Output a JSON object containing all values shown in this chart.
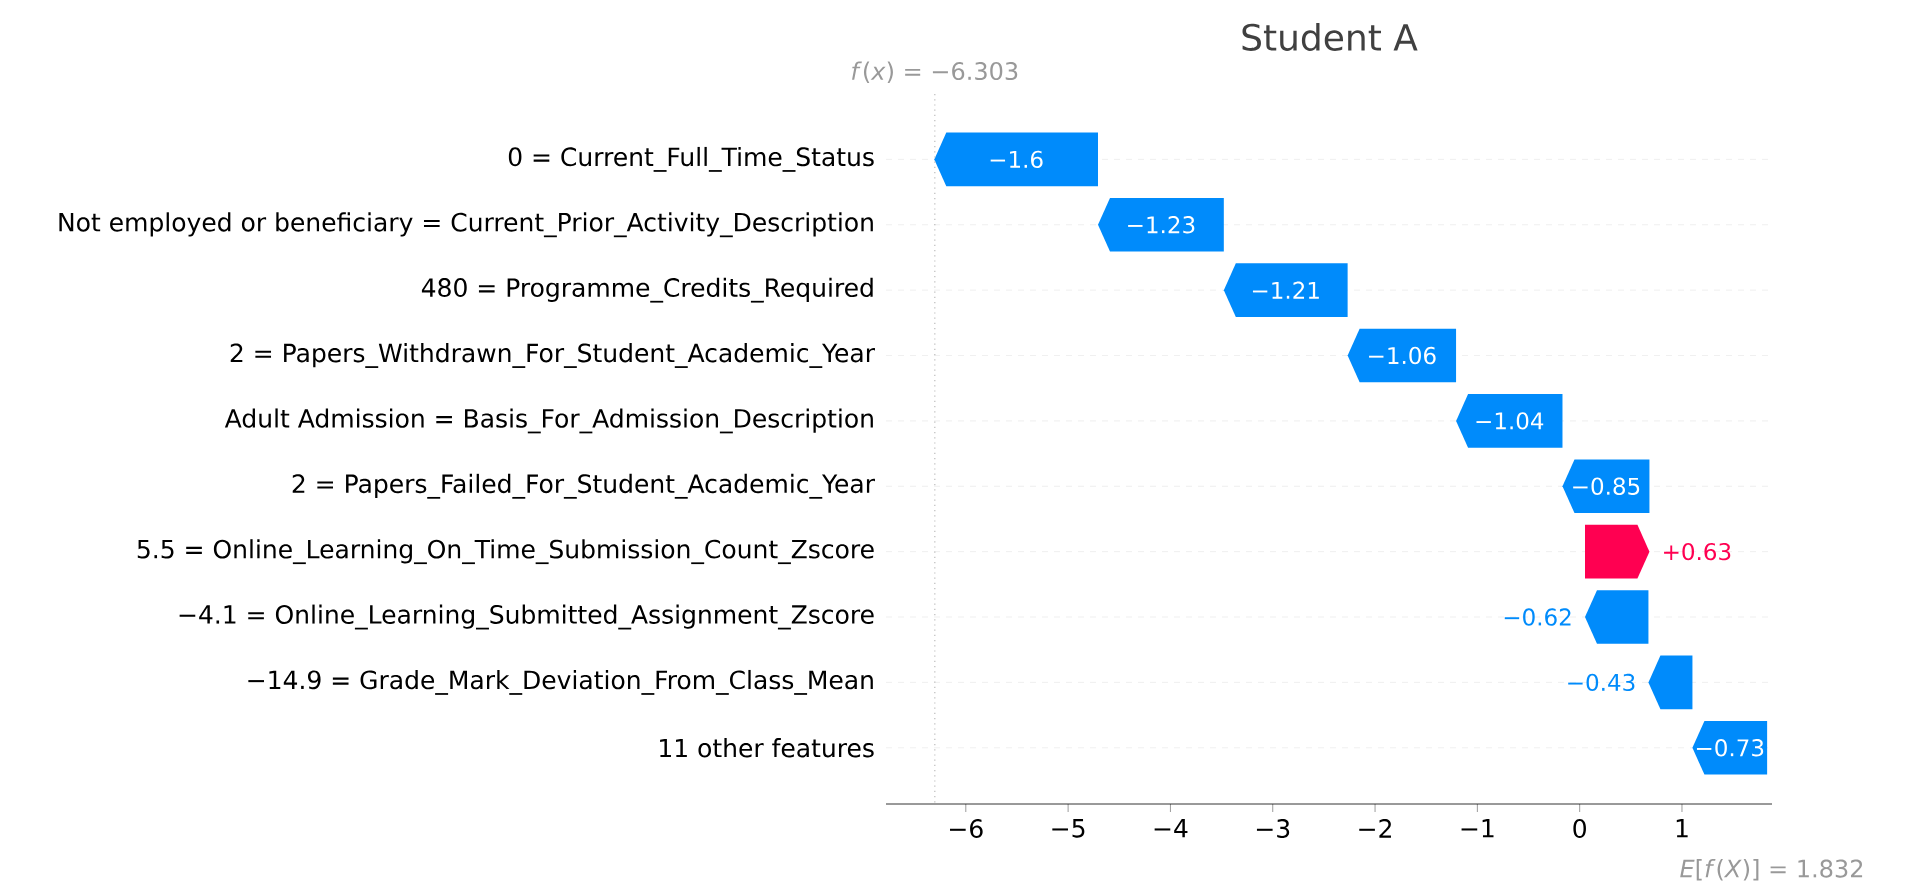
{
  "chart_data": {
    "type": "bar",
    "orientation": "horizontal",
    "title": "Student A",
    "categories": [
      "0 = Current_Full_Time_Status",
      "Not employed or beneficiary = Current_Prior_Activity_Description",
      "480 = Programme_Credits_Required",
      "2 = Papers_Withdrawn_For_Student_Academic_Year",
      "Adult Admission = Basis_For_Admission_Description",
      "2 = Papers_Failed_For_Student_Academic_Year",
      "5.5 = Online_Learning_On_Time_Submission_Count_Zscore",
      "−4.1 = Online_Learning_Submitted_Assignment_Zscore",
      "−14.9 = Grade_Mark_Deviation_From_Class_Mean",
      "11 other features"
    ],
    "values": [
      -1.6,
      -1.23,
      -1.21,
      -1.06,
      -1.04,
      -0.85,
      0.63,
      -0.62,
      -0.43,
      -0.73
    ],
    "base": [
      -4.708,
      -3.478,
      -2.268,
      -1.208,
      -0.168,
      0.682,
      0.052,
      0.672,
      1.102,
      1.832
    ],
    "colors": [
      "#008bfb",
      "#008bfb",
      "#008bfb",
      "#008bfb",
      "#008bfb",
      "#008bfb",
      "#ff0051",
      "#008bfb",
      "#008bfb",
      "#008bfb"
    ],
    "value_labels": [
      "−1.6",
      "−1.23",
      "−1.21",
      "−1.06",
      "−1.04",
      "−0.85",
      "+0.63",
      "−0.62",
      "−0.43",
      "−0.73"
    ],
    "xlim": [
      -6.78,
      1.88
    ],
    "xticks": [
      {
        "value": -6,
        "label": "−6"
      },
      {
        "value": -5,
        "label": "−5"
      },
      {
        "value": -4,
        "label": "−4"
      },
      {
        "value": -3,
        "label": "−3"
      },
      {
        "value": -2,
        "label": "−2"
      },
      {
        "value": -1,
        "label": "−1"
      },
      0,
      1
    ],
    "grid": "y",
    "ref_lines": [
      {
        "axis": "x",
        "value": -6.303,
        "color": "#bbbbbb",
        "line_style": "dotted"
      }
    ],
    "annotations": [
      "*f*(*x*) = −6.303",
      "*E*[*f*(*X*)] = 1.832"
    ]
  }
}
